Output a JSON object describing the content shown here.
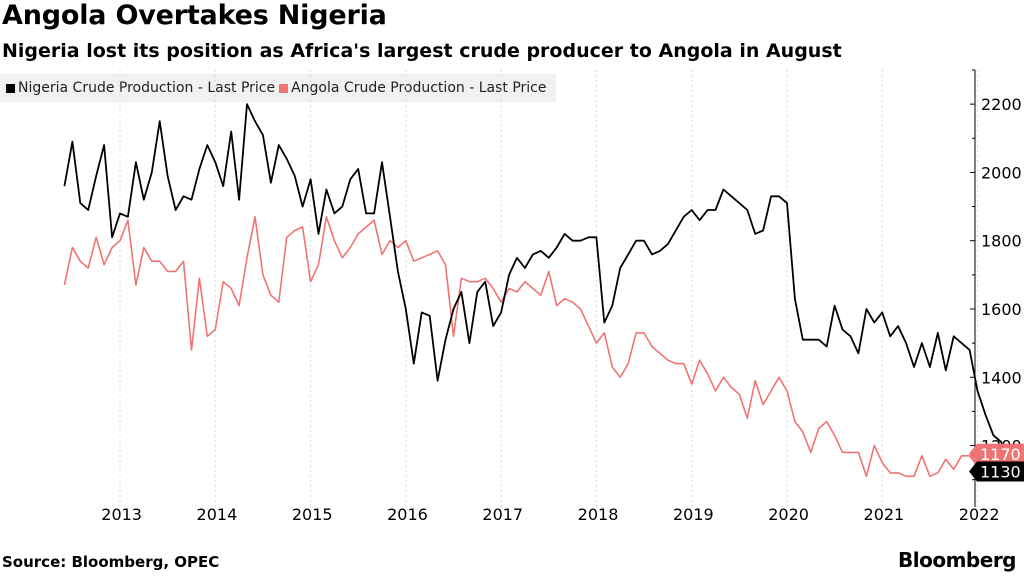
{
  "header": {
    "title": "Angola Overtakes Nigeria",
    "subtitle": "Nigeria lost its position as Africa's largest crude producer to Angola in August"
  },
  "footer": {
    "source": "Source: Bloomberg, OPEC",
    "brand": "Bloomberg"
  },
  "colors": {
    "nigeria": "#000000",
    "angola": "#f07474",
    "grid": "#d9d9d9"
  },
  "chart_data": {
    "type": "line",
    "title": "Angola Overtakes Nigeria",
    "subtitle": "Nigeria lost its position as Africa's largest crude producer to Angola in August",
    "xlabel": "",
    "ylabel": "",
    "ylim": [
      1020,
      2300
    ],
    "xlim": [
      "2012-06",
      "2022-09"
    ],
    "y_ticks": [
      "2200",
      "2000",
      "1800",
      "1600",
      "1400",
      "1200"
    ],
    "x_ticks": [
      "2013",
      "2014",
      "2015",
      "2016",
      "2017",
      "2018",
      "2019",
      "2020",
      "2021",
      "2022"
    ],
    "axis_position": "right",
    "grid": "vertical dotted",
    "legend_position": "top-left",
    "start_month": "2012-06",
    "series": [
      {
        "name": "Nigeria Crude Production - Last Price",
        "color": "#000000",
        "last_label": "1130",
        "values": [
          1960,
          2090,
          1910,
          1890,
          1990,
          2080,
          1810,
          1880,
          1870,
          2030,
          1920,
          2000,
          2150,
          1990,
          1890,
          1930,
          1920,
          2010,
          2080,
          2030,
          1960,
          2120,
          1920,
          2200,
          2150,
          2110,
          1970,
          2080,
          2040,
          1990,
          1900,
          1980,
          1820,
          1950,
          1880,
          1900,
          1980,
          2010,
          1880,
          1880,
          2030,
          1870,
          1710,
          1600,
          1440,
          1590,
          1580,
          1390,
          1510,
          1600,
          1650,
          1500,
          1650,
          1680,
          1550,
          1590,
          1700,
          1750,
          1720,
          1760,
          1770,
          1750,
          1780,
          1820,
          1800,
          1800,
          1810,
          1810,
          1560,
          1610,
          1720,
          1760,
          1800,
          1800,
          1760,
          1770,
          1790,
          1830,
          1870,
          1890,
          1860,
          1890,
          1890,
          1950,
          1930,
          1910,
          1890,
          1820,
          1830,
          1930,
          1930,
          1910,
          1630,
          1510,
          1510,
          1510,
          1490,
          1610,
          1540,
          1520,
          1470,
          1600,
          1560,
          1590,
          1520,
          1550,
          1500,
          1430,
          1500,
          1430,
          1530,
          1420,
          1520,
          1500,
          1480,
          1360,
          1290,
          1230,
          1210,
          1130
        ]
      },
      {
        "name": "Angola Crude Production - Last Price",
        "color": "#f07474",
        "last_label": "1170",
        "values": [
          1670,
          1780,
          1740,
          1720,
          1810,
          1730,
          1780,
          1800,
          1860,
          1670,
          1780,
          1740,
          1740,
          1710,
          1710,
          1740,
          1480,
          1690,
          1520,
          1540,
          1680,
          1660,
          1610,
          1750,
          1870,
          1700,
          1640,
          1620,
          1810,
          1830,
          1840,
          1680,
          1730,
          1870,
          1800,
          1750,
          1780,
          1820,
          1840,
          1860,
          1760,
          1800,
          1780,
          1800,
          1740,
          1750,
          1760,
          1770,
          1730,
          1520,
          1690,
          1680,
          1680,
          1690,
          1660,
          1620,
          1660,
          1650,
          1680,
          1660,
          1640,
          1710,
          1610,
          1630,
          1620,
          1600,
          1550,
          1500,
          1530,
          1430,
          1400,
          1440,
          1530,
          1530,
          1490,
          1470,
          1450,
          1440,
          1440,
          1380,
          1450,
          1410,
          1360,
          1400,
          1370,
          1350,
          1280,
          1390,
          1320,
          1360,
          1400,
          1360,
          1270,
          1240,
          1180,
          1250,
          1270,
          1230,
          1180,
          1180,
          1180,
          1110,
          1200,
          1150,
          1120,
          1120,
          1110,
          1110,
          1170,
          1110,
          1120,
          1160,
          1130,
          1170,
          1170,
          1140,
          1160,
          1200,
          1140,
          1170
        ]
      }
    ]
  }
}
